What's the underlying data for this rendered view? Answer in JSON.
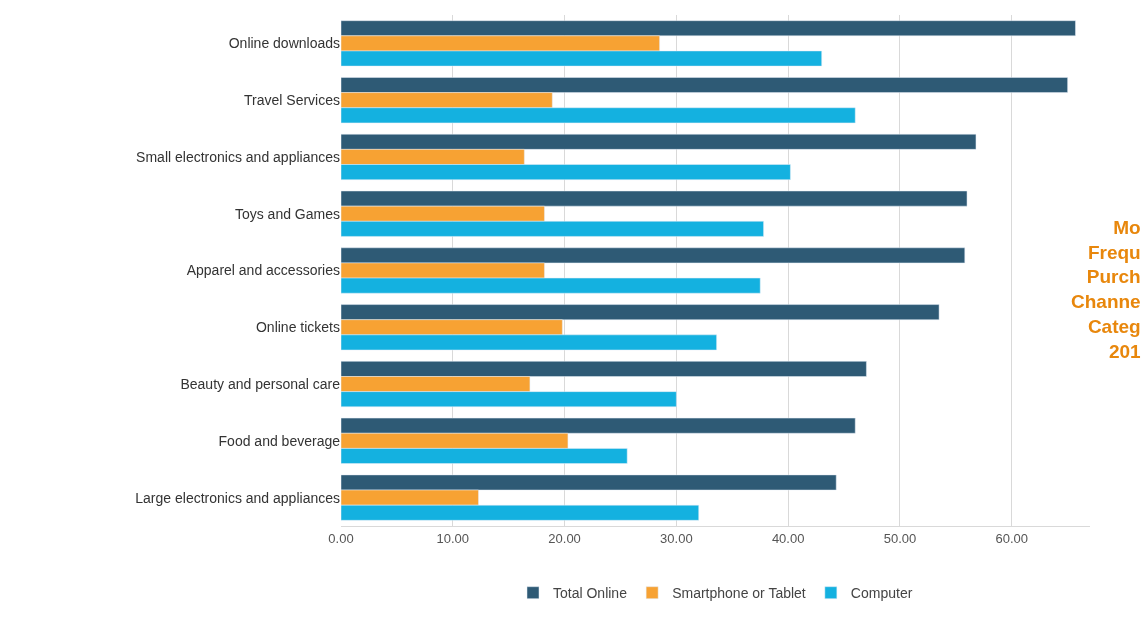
{
  "chart_data": {
    "type": "bar",
    "orientation": "horizontal",
    "categories": [
      "Online downloads",
      "Travel Services",
      "Small electronics and appliances",
      "Toys and Games",
      "Apparel and accessories",
      "Online tickets",
      "Beauty and personal care",
      "Food and beverage",
      "Large electronics and appliances"
    ],
    "series": [
      {
        "name": "Total Online",
        "color": "#2e5a75",
        "values": [
          65.7,
          65.0,
          56.8,
          56.0,
          55.8,
          53.5,
          47.0,
          46.0,
          44.3
        ]
      },
      {
        "name": "Smartphone or Tablet",
        "color": "#f7a233",
        "values": [
          28.5,
          18.9,
          16.4,
          18.2,
          18.2,
          19.8,
          16.9,
          20.3,
          12.3
        ]
      },
      {
        "name": "Computer",
        "color": "#14b1e0",
        "values": [
          43.0,
          46.0,
          40.2,
          37.8,
          37.5,
          33.6,
          30.0,
          25.6,
          32.0
        ]
      }
    ],
    "xlim": [
      0,
      67
    ],
    "xticks": [
      {
        "value": 0,
        "label": "0.00"
      },
      {
        "value": 10,
        "label": "10.00"
      },
      {
        "value": 20,
        "label": "20.00"
      },
      {
        "value": 30,
        "label": "30.00"
      },
      {
        "value": 40,
        "label": "40.00"
      },
      {
        "value": 50,
        "label": "50.00"
      },
      {
        "value": 60,
        "label": "60.00"
      }
    ],
    "grid": "x",
    "legend": "bottom",
    "annotations": [
      "Mo\nFrequ\nPurch\nChanne\nCateg\n201"
    ]
  }
}
